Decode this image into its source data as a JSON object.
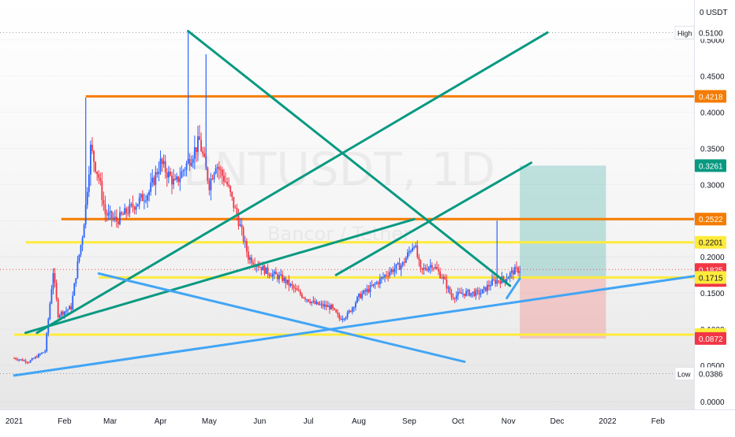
{
  "chart_data": {
    "type": "candlestick",
    "watermark": {
      "symbol": "BNTUSDT, 1D",
      "subtitle": "Bancor / Tether"
    },
    "currency": "USDT",
    "x_labels": [
      "2021",
      "Feb",
      "Mar",
      "Apr",
      "May",
      "Jun",
      "Jul",
      "Aug",
      "Sep",
      "Oct",
      "Nov",
      "Dec",
      "2022",
      "Feb"
    ],
    "x_range": [
      "2021-01-01",
      "2022-02-28"
    ],
    "y_ticks": [
      "0.0000",
      "0.0500",
      "0.1000",
      "0.1500",
      "0.2000",
      "0.2500",
      "0.3000",
      "0.3500",
      "0.4000",
      "0.4500",
      "0.5000"
    ],
    "ylim": [
      0,
      0.555
    ],
    "price_path": [
      [
        "2021-01-01",
        0.06
      ],
      [
        "2021-01-10",
        0.055
      ],
      [
        "2021-01-20",
        0.07
      ],
      [
        "2021-01-25",
        0.18
      ],
      [
        "2021-01-28",
        0.12
      ],
      [
        "2021-02-05",
        0.13
      ],
      [
        "2021-02-09",
        0.19
      ],
      [
        "2021-02-12",
        0.23
      ],
      [
        "2021-02-14",
        0.27
      ],
      [
        "2021-02-17",
        0.35
      ],
      [
        "2021-02-22",
        0.31
      ],
      [
        "2021-02-26",
        0.26
      ],
      [
        "2021-03-05",
        0.25
      ],
      [
        "2021-03-15",
        0.27
      ],
      [
        "2021-03-25",
        0.29
      ],
      [
        "2021-04-01",
        0.33
      ],
      [
        "2021-04-10",
        0.3
      ],
      [
        "2021-04-20",
        0.34
      ],
      [
        "2021-04-25",
        0.36
      ],
      [
        "2021-05-01",
        0.3
      ],
      [
        "2021-05-05",
        0.33
      ],
      [
        "2021-05-12",
        0.3
      ],
      [
        "2021-05-19",
        0.25
      ],
      [
        "2021-05-25",
        0.2
      ],
      [
        "2021-06-05",
        0.18
      ],
      [
        "2021-06-15",
        0.17
      ],
      [
        "2021-06-25",
        0.15
      ],
      [
        "2021-07-05",
        0.135
      ],
      [
        "2021-07-15",
        0.13
      ],
      [
        "2021-07-20",
        0.115
      ],
      [
        "2021-07-25",
        0.12
      ],
      [
        "2021-08-01",
        0.145
      ],
      [
        "2021-08-10",
        0.16
      ],
      [
        "2021-08-20",
        0.18
      ],
      [
        "2021-08-28",
        0.19
      ],
      [
        "2021-09-04",
        0.22
      ],
      [
        "2021-09-08",
        0.18
      ],
      [
        "2021-09-15",
        0.19
      ],
      [
        "2021-09-22",
        0.17
      ],
      [
        "2021-09-27",
        0.145
      ],
      [
        "2021-10-05",
        0.15
      ],
      [
        "2021-10-15",
        0.15
      ],
      [
        "2021-10-22",
        0.165
      ],
      [
        "2021-10-30",
        0.17
      ],
      [
        "2021-11-04",
        0.18
      ],
      [
        "2021-11-08",
        0.1825
      ]
    ],
    "spikes": [
      {
        "date": "2021-02-14",
        "high": 0.42
      },
      {
        "date": "2021-04-18",
        "high": 0.51
      },
      {
        "date": "2021-04-29",
        "high": 0.48
      },
      {
        "date": "2021-10-25",
        "high": 0.25
      }
    ],
    "price_labels": [
      {
        "text": "0 USDT",
        "kind": "header"
      },
      {
        "text": "0.5100",
        "kind": "plain",
        "tag": "High",
        "value": 0.51
      },
      {
        "text": "0.4218",
        "kind": "orange",
        "value": 0.4218
      },
      {
        "text": "0.3261",
        "kind": "teal",
        "value": 0.3261
      },
      {
        "text": "0.2522",
        "kind": "orange",
        "value": 0.2522
      },
      {
        "text": "0.2201",
        "kind": "yellow",
        "value": 0.2201
      },
      {
        "text": "0.1825",
        "kind": "red",
        "value": 0.1825,
        "sub": "08:37:26"
      },
      {
        "text": "0.1717",
        "kind": "grey",
        "value": 0.1717
      },
      {
        "text": "0.1715",
        "kind": "yellow",
        "value": 0.1715
      },
      {
        "text": "0.0925",
        "kind": "yellow",
        "value": 0.0925
      },
      {
        "text": "0.0872",
        "kind": "red",
        "value": 0.0872
      },
      {
        "text": "0.0386",
        "kind": "plain",
        "tag": "Low",
        "value": 0.0386
      }
    ],
    "horizontal_lines": [
      {
        "value": 0.4218,
        "from": "2021-02-14",
        "color": "#f57c00"
      },
      {
        "value": 0.2522,
        "from": "2021-01-30",
        "color": "#f57c00"
      },
      {
        "value": 0.2201,
        "from": "2021-01-08",
        "color": "#ffeb3b"
      },
      {
        "value": 0.1715,
        "from": "2021-02-22",
        "color": "#ffeb3b"
      },
      {
        "value": 0.0925,
        "from": "2021-01-01",
        "color": "#ffeb3b"
      }
    ],
    "trend_lines": [
      {
        "from": [
          "2021-01-08",
          0.095
        ],
        "to": [
          "2021-09-04",
          0.252
        ],
        "color": "#089981"
      },
      {
        "from": [
          "2021-04-18",
          0.512
        ],
        "to": [
          "2021-11-02",
          0.16
        ],
        "color": "#089981"
      },
      {
        "from": [
          "2021-04-18",
          0.512
        ],
        "to": [
          "2021-04-18",
          0.512
        ],
        "color": "#089981"
      },
      {
        "from": [
          "2021-01-15",
          0.095
        ],
        "to": [
          "2021-11-25",
          0.51
        ],
        "color": "#089981"
      },
      {
        "from": [
          "2021-07-18",
          0.175
        ],
        "to": [
          "2021-11-15",
          0.33
        ],
        "color": "#089981"
      },
      {
        "from": [
          "2021-01-01",
          0.036
        ],
        "to": [
          "2022-02-28",
          0.175
        ],
        "color": "#42a5f5"
      },
      {
        "from": [
          "2021-02-22",
          0.177
        ],
        "to": [
          "2021-10-05",
          0.055
        ],
        "color": "#42a5f5"
      },
      {
        "from": [
          "2021-10-31",
          0.143
        ],
        "to": [
          "2021-11-08",
          0.17
        ],
        "color": "#42a5f5"
      }
    ],
    "position": {
      "from": "2021-11-08",
      "to": "2021-12-31",
      "target": 0.3261,
      "entry": 0.1717,
      "stop": 0.0872
    },
    "high": 0.51,
    "low": 0.0386,
    "current_price": 0.1825,
    "countdown": "08:37:26"
  }
}
